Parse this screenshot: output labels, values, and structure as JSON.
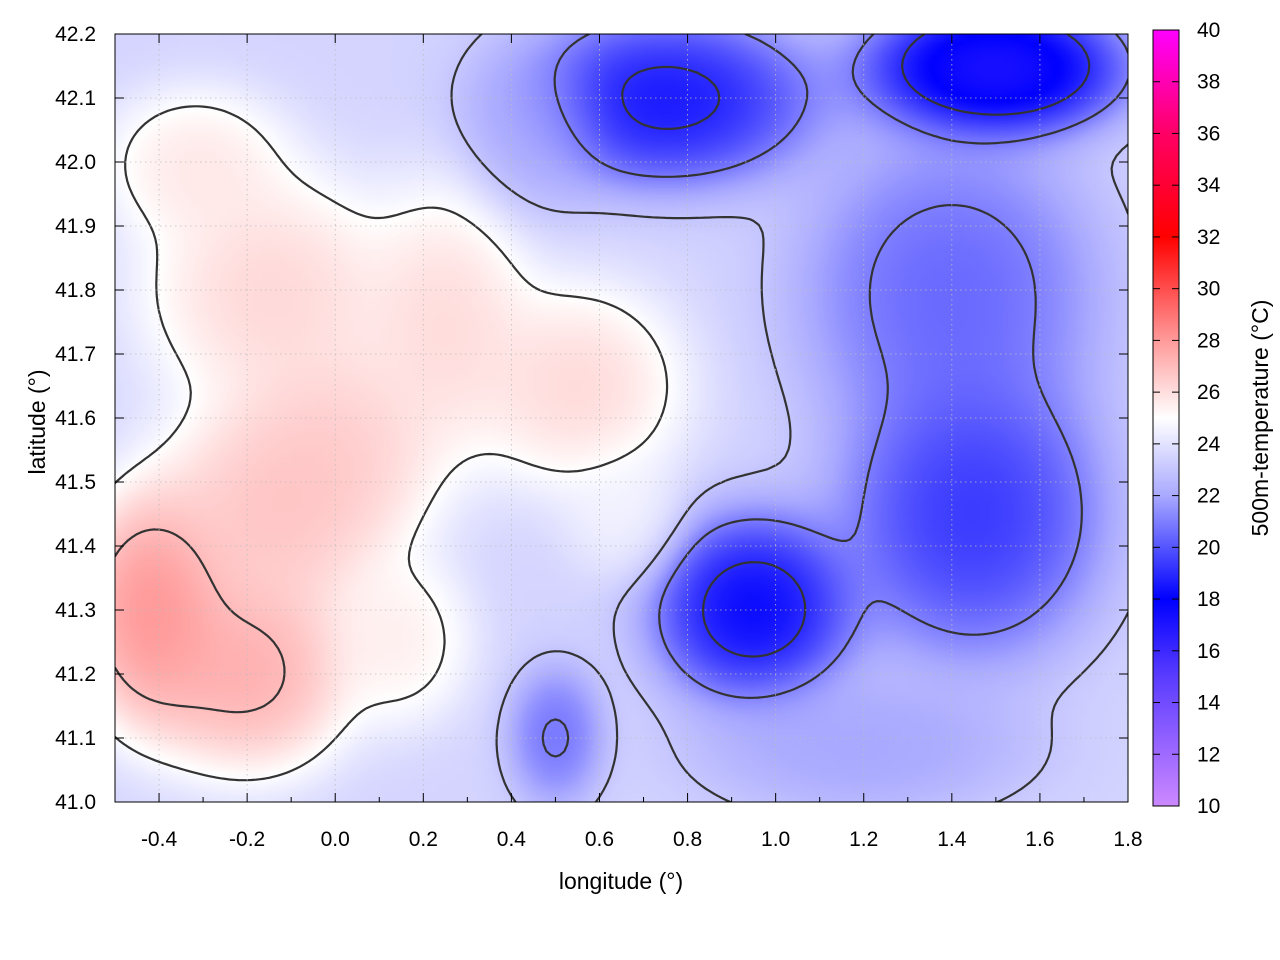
{
  "chart_data": {
    "type": "heatmap",
    "title": "",
    "xlabel": "longitude (°)",
    "ylabel": "latitude (°)",
    "colorbar_label": "500m-temperature (°C)",
    "xlim": [
      -0.5,
      1.8
    ],
    "ylim": [
      41.0,
      42.2
    ],
    "color_range": [
      10,
      40
    ],
    "x_ticks": [
      {
        "v": -0.4,
        "label": "-0.4"
      },
      {
        "v": -0.2,
        "label": "-0.2"
      },
      {
        "v": 0.0,
        "label": "0.0"
      },
      {
        "v": 0.2,
        "label": "0.2"
      },
      {
        "v": 0.4,
        "label": "0.4"
      },
      {
        "v": 0.6,
        "label": "0.6"
      },
      {
        "v": 0.8,
        "label": "0.8"
      },
      {
        "v": 1.0,
        "label": "1.0"
      },
      {
        "v": 1.2,
        "label": "1.2"
      },
      {
        "v": 1.4,
        "label": "1.4"
      },
      {
        "v": 1.6,
        "label": "1.6"
      },
      {
        "v": 1.8,
        "label": "1.8"
      }
    ],
    "y_ticks": [
      {
        "v": 41.0,
        "label": "41.0"
      },
      {
        "v": 41.1,
        "label": "41.1"
      },
      {
        "v": 41.2,
        "label": "41.2"
      },
      {
        "v": 41.3,
        "label": "41.3"
      },
      {
        "v": 41.4,
        "label": "41.4"
      },
      {
        "v": 41.5,
        "label": "41.5"
      },
      {
        "v": 41.6,
        "label": "41.6"
      },
      {
        "v": 41.7,
        "label": "41.7"
      },
      {
        "v": 41.8,
        "label": "41.8"
      },
      {
        "v": 41.9,
        "label": "41.9"
      },
      {
        "v": 42.0,
        "label": "42.0"
      },
      {
        "v": 42.1,
        "label": "42.1"
      },
      {
        "v": 42.2,
        "label": "42.2"
      }
    ],
    "cb_ticks": [
      {
        "v": 10,
        "label": "10"
      },
      {
        "v": 12,
        "label": "12"
      },
      {
        "v": 14,
        "label": "14"
      },
      {
        "v": 16,
        "label": "16"
      },
      {
        "v": 18,
        "label": "18"
      },
      {
        "v": 20,
        "label": "20"
      },
      {
        "v": 22,
        "label": "22"
      },
      {
        "v": 24,
        "label": "24"
      },
      {
        "v": 26,
        "label": "26"
      },
      {
        "v": 28,
        "label": "28"
      },
      {
        "v": 30,
        "label": "30"
      },
      {
        "v": 32,
        "label": "32"
      },
      {
        "v": 34,
        "label": "34"
      },
      {
        "v": 36,
        "label": "36"
      },
      {
        "v": 38,
        "label": "38"
      },
      {
        "v": 40,
        "label": "40"
      }
    ],
    "grid": true,
    "colormap": [
      {
        "v": 10,
        "color": "#cc88ff"
      },
      {
        "v": 15,
        "color": "#5a3cff"
      },
      {
        "v": 18,
        "color": "#0000ff"
      },
      {
        "v": 22,
        "color": "#a9a9ff"
      },
      {
        "v": 25,
        "color": "#ffffff"
      },
      {
        "v": 28,
        "color": "#ff9a9a"
      },
      {
        "v": 32,
        "color": "#ff0000"
      },
      {
        "v": 36,
        "color": "#ff0066"
      },
      {
        "v": 40,
        "color": "#ff00ff"
      }
    ],
    "features": [
      {
        "x": -0.42,
        "y": 41.3,
        "temp": 29.5,
        "sx": 0.13,
        "sy": 0.14
      },
      {
        "x": -0.2,
        "y": 41.2,
        "temp": 28.5,
        "sx": 0.18,
        "sy": 0.12
      },
      {
        "x": -0.15,
        "y": 41.45,
        "temp": 27.6,
        "sx": 0.2,
        "sy": 0.14
      },
      {
        "x": 0.0,
        "y": 41.55,
        "temp": 27.2,
        "sx": 0.18,
        "sy": 0.13
      },
      {
        "x": -0.15,
        "y": 41.8,
        "temp": 27.0,
        "sx": 0.22,
        "sy": 0.14
      },
      {
        "x": -0.32,
        "y": 42.0,
        "temp": 26.3,
        "sx": 0.16,
        "sy": 0.09
      },
      {
        "x": 0.25,
        "y": 41.75,
        "temp": 26.8,
        "sx": 0.15,
        "sy": 0.16
      },
      {
        "x": 0.55,
        "y": 41.65,
        "temp": 26.9,
        "sx": 0.18,
        "sy": 0.12
      },
      {
        "x": 0.15,
        "y": 41.25,
        "temp": 26.0,
        "sx": 0.12,
        "sy": 0.1
      },
      {
        "x": 0.65,
        "y": 41.45,
        "temp": 24.8,
        "sx": 0.1,
        "sy": 0.08
      },
      {
        "x": 0.5,
        "y": 41.1,
        "temp": 20.0,
        "sx": 0.08,
        "sy": 0.08
      },
      {
        "x": 0.95,
        "y": 41.3,
        "temp": 16.5,
        "sx": 0.17,
        "sy": 0.11
      },
      {
        "x": 1.45,
        "y": 41.45,
        "temp": 18.0,
        "sx": 0.22,
        "sy": 0.17
      },
      {
        "x": 1.4,
        "y": 41.8,
        "temp": 19.5,
        "sx": 0.25,
        "sy": 0.18
      },
      {
        "x": 0.75,
        "y": 42.1,
        "temp": 17.0,
        "sx": 0.25,
        "sy": 0.1
      },
      {
        "x": 1.5,
        "y": 42.15,
        "temp": 15.0,
        "sx": 0.22,
        "sy": 0.08
      },
      {
        "x": 1.2,
        "y": 41.08,
        "temp": 21.5,
        "sx": 0.28,
        "sy": 0.08
      },
      {
        "x": 0.45,
        "y": 42.05,
        "temp": 22.0,
        "sx": 0.12,
        "sy": 0.1
      }
    ]
  }
}
